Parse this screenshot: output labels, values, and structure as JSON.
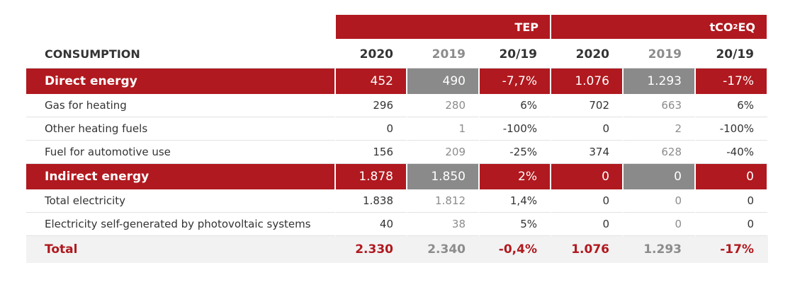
{
  "header": {
    "group_blank": "",
    "group_tep": "TEP",
    "group_tco2_prefix": "tCO",
    "group_tco2_sub": "2",
    "group_tco2_suffix": "EQ",
    "consumption_label": "CONSUMPTION",
    "columns": [
      "2020",
      "2019",
      "20/19",
      "2020",
      "2019",
      "20/19"
    ]
  },
  "rows": [
    {
      "type": "section",
      "label": "Direct energy",
      "values": [
        "452",
        "490",
        "-7,7%",
        "1.076",
        "1.293",
        "-17%"
      ]
    },
    {
      "type": "detail",
      "label": "Gas for heating",
      "values": [
        "296",
        "280",
        "6%",
        "702",
        "663",
        "6%"
      ]
    },
    {
      "type": "detail",
      "label": "Other heating fuels",
      "values": [
        "0",
        "1",
        "-100%",
        "0",
        "2",
        "-100%"
      ]
    },
    {
      "type": "detail",
      "label": "Fuel for automotive use",
      "values": [
        "156",
        "209",
        "-25%",
        "374",
        "628",
        "-40%"
      ]
    },
    {
      "type": "section",
      "label": "Indirect energy",
      "values": [
        "1.878",
        "1.850",
        "2%",
        "0",
        "0",
        "0"
      ]
    },
    {
      "type": "detail",
      "label": "Total electricity",
      "values": [
        "1.838",
        "1.812",
        "1,4%",
        "0",
        "0",
        "0"
      ]
    },
    {
      "type": "detail",
      "label": "Electricity self-generated by photovoltaic systems",
      "values": [
        "40",
        "38",
        "5%",
        "0",
        "0",
        "0"
      ]
    },
    {
      "type": "total",
      "label": "Total",
      "values": [
        "2.330",
        "2.340",
        "-0,4%",
        "1.076",
        "1.293",
        "-17%"
      ]
    }
  ],
  "colors": {
    "accent_red": "#b0191f",
    "section_grey": "#8a8a8a",
    "total_bg": "#f2f2f2",
    "muted_text": "#8c8c8c"
  }
}
